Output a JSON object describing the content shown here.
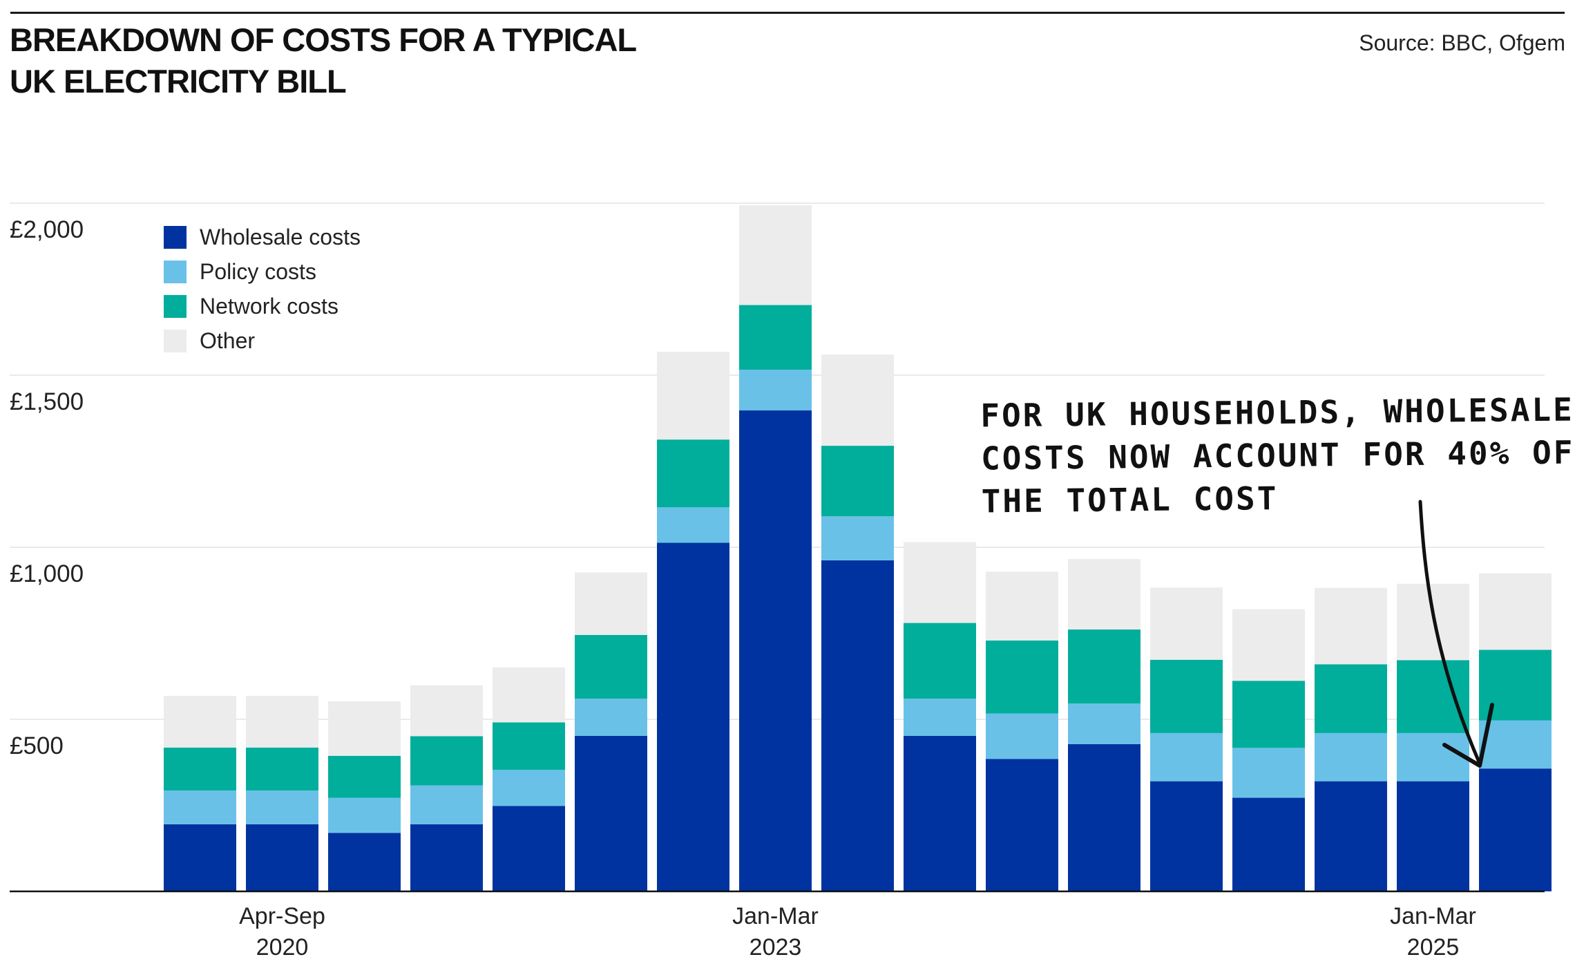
{
  "title_line1": "BREAKDOWN OF COSTS FOR A TYPICAL",
  "title_line2": "UK ELECTRICITY BILL",
  "source": "Source: BBC, Ofgem",
  "annotation": {
    "line1": "For UK households, wholesale",
    "line2": "costs now account for 40% of",
    "line3": "the total cost"
  },
  "legend": [
    {
      "label": "Wholesale costs",
      "color": "#0033a0"
    },
    {
      "label": "Policy costs",
      "color": "#69c1e8"
    },
    {
      "label": "Network costs",
      "color": "#00ae9b"
    },
    {
      "label": "Other",
      "color": "#ececec"
    }
  ],
  "chart_data": {
    "type": "bar",
    "stacked": true,
    "title": "BREAKDOWN OF COSTS FOR A TYPICAL UK ELECTRICITY BILL",
    "xlabel": "",
    "ylabel": "",
    "ylim": [
      0,
      2000
    ],
    "yticks": [
      {
        "value": 500,
        "label": "£500"
      },
      {
        "value": 1000,
        "label": "£1,000"
      },
      {
        "value": 1500,
        "label": "£1,500"
      },
      {
        "value": 2000,
        "label": "£2,000"
      }
    ],
    "grid": true,
    "legend_position": "top-left",
    "x_labels": [
      {
        "index": 1,
        "line1": "Apr-Sep",
        "line2": "2020"
      },
      {
        "index": 7,
        "line1": "Jan-Mar",
        "line2": "2023"
      },
      {
        "index": 15,
        "line1": "Jan-Mar",
        "line2": "2025"
      }
    ],
    "bar_count": 17,
    "series": [
      {
        "name": "Wholesale costs",
        "color": "#0033a0",
        "values": [
          195,
          195,
          170,
          195,
          248,
          452,
          1013,
          1398,
          962,
          452,
          385,
          428,
          320,
          272,
          320,
          320,
          357
        ]
      },
      {
        "name": "Policy costs",
        "color": "#69c1e8",
        "values": [
          98,
          98,
          102,
          113,
          105,
          108,
          103,
          118,
          128,
          108,
          132,
          118,
          140,
          145,
          140,
          140,
          140
        ]
      },
      {
        "name": "Network costs",
        "color": "#00ae9b",
        "values": [
          125,
          125,
          122,
          143,
          138,
          185,
          197,
          188,
          205,
          220,
          212,
          215,
          213,
          195,
          200,
          212,
          205
        ]
      },
      {
        "name": "Other",
        "color": "#ececec",
        "values": [
          150,
          150,
          158,
          148,
          160,
          182,
          255,
          290,
          265,
          235,
          200,
          205,
          210,
          208,
          222,
          222,
          222
        ]
      }
    ]
  }
}
